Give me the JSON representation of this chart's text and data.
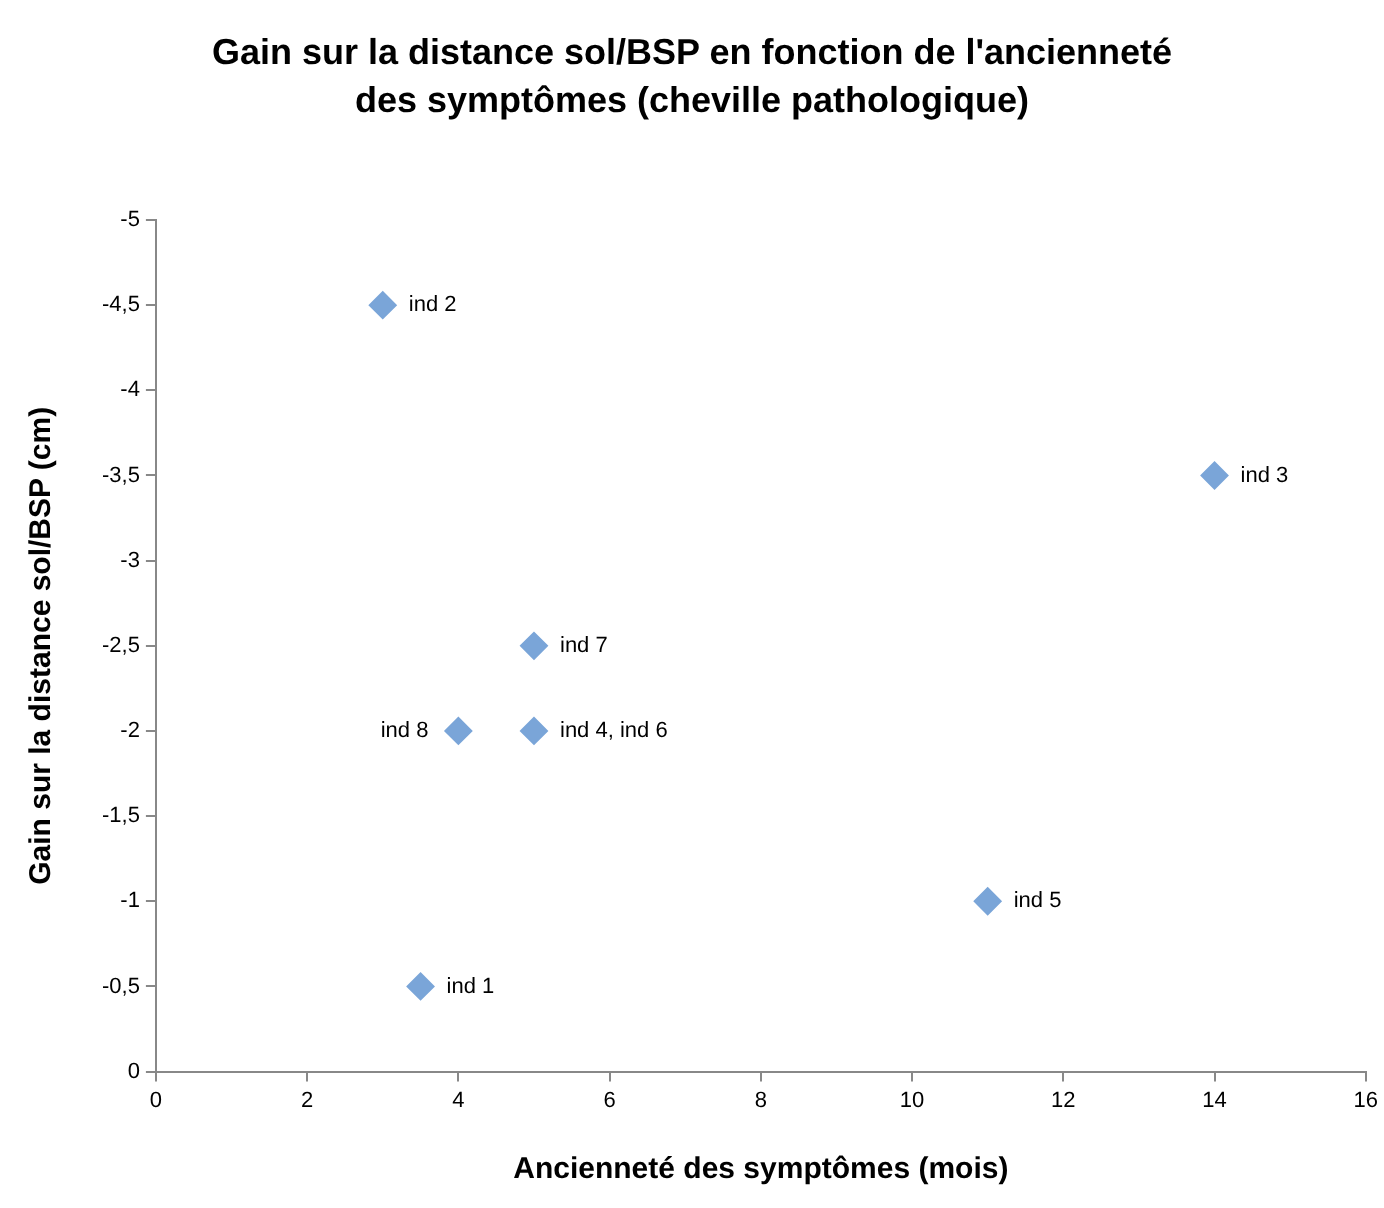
{
  "chart_data": {
    "type": "scatter",
    "title": "Gain sur la distance sol/BSP en fonction de l'ancienneté des symptômes (cheville pathologique)",
    "xlabel": "Ancienneté des symptômes (mois)",
    "ylabel": "Gain sur la distance sol/BSP (cm)",
    "x": [
      3.5,
      3,
      14,
      5,
      11,
      5,
      4
    ],
    "series": [
      {
        "color": "#7aa5d8",
        "values": [
          -0.5,
          -4.5,
          -3.5,
          -2,
          -1,
          -2.5,
          -2
        ]
      }
    ],
    "annotations": [
      {
        "text": "ind 1",
        "x": 3.5,
        "y": -0.5
      },
      {
        "text": "ind 2",
        "x": 3,
        "y": -4.5
      },
      {
        "text": "ind 3",
        "x": 14,
        "y": -3.5
      },
      {
        "text": "ind 4, ind 6",
        "x": 5,
        "y": -2
      },
      {
        "text": "ind 5",
        "x": 11,
        "y": -1
      },
      {
        "text": "ind 7",
        "x": 5,
        "y": -2.5
      },
      {
        "text": "ind 8",
        "x": 4,
        "y": -2
      }
    ],
    "xlim": [
      0,
      16
    ],
    "xticks": [
      0,
      2,
      4,
      6,
      8,
      10,
      12,
      14,
      16
    ],
    "ylim": [
      0,
      -5
    ],
    "yticks": [
      0,
      {
        "value": -0.5,
        "label": "-0,5"
      },
      -1,
      {
        "value": -1.5,
        "label": "-1,5"
      },
      -2,
      {
        "value": -2.5,
        "label": "-2,5"
      },
      -3,
      {
        "value": -3.5,
        "label": "-3,5"
      },
      -4,
      {
        "value": -4.5,
        "label": "-4,5"
      },
      -5
    ],
    "grid": false,
    "legend": false,
    "marker": "diamond"
  }
}
